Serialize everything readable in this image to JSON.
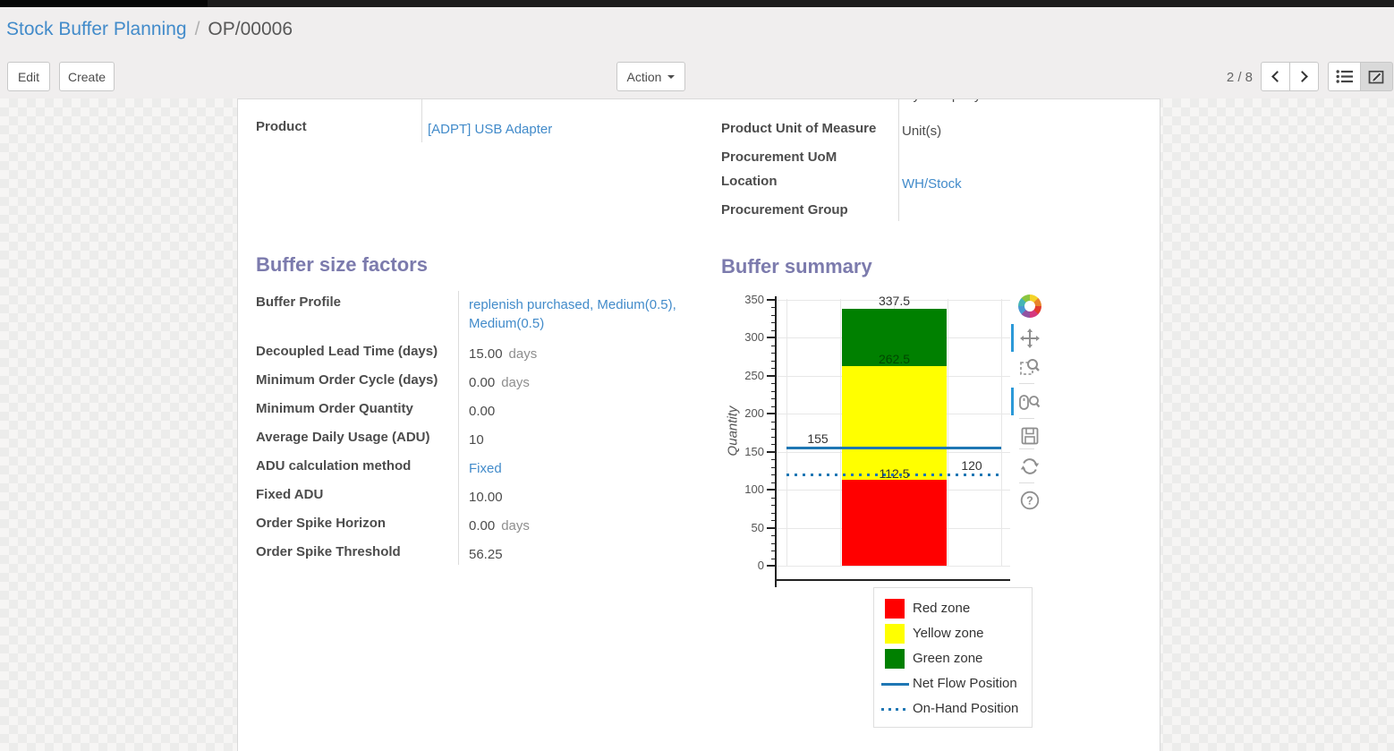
{
  "breadcrumb": {
    "parent": "Stock Buffer Planning",
    "separator": "/",
    "current": "OP/00006"
  },
  "toolbar": {
    "edit": "Edit",
    "create": "Create",
    "action": "Action",
    "pager": "2 / 8",
    "icons": [
      "chevron-left",
      "chevron-right",
      "list-view",
      "form-view"
    ],
    "active_view": "form-view"
  },
  "sheet": {
    "clipped_row": {
      "value": "My Company"
    },
    "left_fields": [
      {
        "label": "Product",
        "value": "[ADPT] USB Adapter",
        "link": true
      }
    ],
    "right_fields": [
      {
        "label": "Product Unit of Measure",
        "value": "Unit(s)",
        "link": false
      },
      {
        "label": "Procurement UoM",
        "value": "",
        "link": false
      },
      {
        "label": "Location",
        "value": "WH/Stock",
        "link": true
      },
      {
        "label": "Procurement Group",
        "value": "",
        "link": false
      }
    ],
    "buffer_factors": {
      "title": "Buffer size factors",
      "fields": [
        {
          "label": "Buffer Profile",
          "value": "replenish purchased, Medium(0.5), Medium(0.5)",
          "link": true
        },
        {
          "label": "Decoupled Lead Time (days)",
          "value": "15.00",
          "unit": "days"
        },
        {
          "label": "Minimum Order Cycle (days)",
          "value": "0.00",
          "unit": "days"
        },
        {
          "label": "Minimum Order Quantity",
          "value": "0.00"
        },
        {
          "label": "Average Daily Usage (ADU)",
          "value": "10"
        },
        {
          "label": "ADU calculation method",
          "value": "Fixed",
          "link": true
        },
        {
          "label": "Fixed ADU",
          "value": "10.00"
        },
        {
          "label": "Order Spike Horizon",
          "value": "0.00",
          "unit": "days"
        },
        {
          "label": "Order Spike Threshold",
          "value": "56.25"
        }
      ]
    },
    "buffer_summary": {
      "title": "Buffer summary"
    }
  },
  "chart_data": {
    "type": "bar",
    "title": "",
    "xlabel": "",
    "ylabel": "Quantity",
    "ylim": [
      0,
      350
    ],
    "yticks": [
      0,
      50,
      100,
      150,
      200,
      250,
      300,
      350
    ],
    "minor_tick_step": 10,
    "grid": true,
    "categories": [
      ""
    ],
    "series": [
      {
        "name": "Red zone",
        "color": "#ff0000",
        "from": 0,
        "to": 112.5
      },
      {
        "name": "Yellow zone",
        "color": "#ffff00",
        "from": 112.5,
        "to": 262.5
      },
      {
        "name": "Green zone",
        "color": "#008000",
        "from": 262.5,
        "to": 337.5
      }
    ],
    "lines": [
      {
        "name": "Net Flow Position",
        "value": 155,
        "style": "solid",
        "color": "#1f77b4",
        "label_side": "left"
      },
      {
        "name": "On-Hand Position",
        "value": 120,
        "style": "dotted",
        "color": "#1f77b4",
        "label_side": "right"
      }
    ],
    "bar_labels": [
      "337.5",
      "262.5",
      "112.5"
    ],
    "legend": {
      "position": "bottom-right",
      "entries": [
        {
          "label": "Red zone",
          "swatch": "square",
          "color": "#ff0000"
        },
        {
          "label": "Yellow zone",
          "swatch": "square",
          "color": "#ffff00"
        },
        {
          "label": "Green zone",
          "swatch": "square",
          "color": "#008000"
        },
        {
          "label": "Net Flow Position",
          "swatch": "line",
          "color": "#1f77b4"
        },
        {
          "label": "On-Hand Position",
          "swatch": "dotted-line",
          "color": "#1f77b4"
        }
      ]
    },
    "toolbar_icons": [
      "bokeh-logo",
      "pan",
      "box-zoom",
      "wheel-zoom",
      "save",
      "reset",
      "help"
    ],
    "active_tools": [
      "pan",
      "wheel-zoom"
    ]
  },
  "colors": {
    "heading": "#7c7bad",
    "link": "#428bca",
    "label": "#4c4c4c",
    "unit": "#8e8e8e",
    "tool_active": "#2b99d8"
  }
}
